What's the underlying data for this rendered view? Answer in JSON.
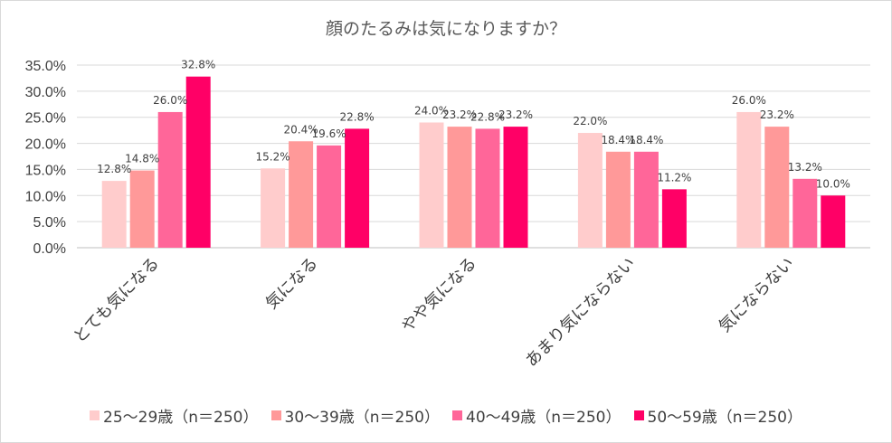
{
  "chart_data": {
    "type": "bar",
    "title": "顔のたるみは気になりますか？",
    "categories": [
      "とても気になる",
      "気になる",
      "やや気になる",
      "あまり気にならない",
      "気にならない"
    ],
    "series": [
      {
        "name": "25～29歳（n＝250）",
        "color": "#ffcccc",
        "values": [
          12.8,
          15.2,
          24.0,
          22.0,
          26.0
        ],
        "labels": [
          "12.8%",
          "15.2%",
          "24.0%",
          "22.0%",
          "26.0%"
        ]
      },
      {
        "name": "30～39歳（n＝250）",
        "color": "#ff9999",
        "values": [
          14.8,
          20.4,
          23.2,
          18.4,
          23.2
        ],
        "labels": [
          "14.8%",
          "20.4%",
          "23.2%",
          "18.4%",
          "23.2%"
        ]
      },
      {
        "name": "40～49歳（n＝250）",
        "color": "#ff6699",
        "values": [
          26.0,
          19.6,
          22.8,
          18.4,
          13.2
        ],
        "labels": [
          "26.0%",
          "19.6%",
          "22.8%",
          "18.4%",
          "13.2%"
        ]
      },
      {
        "name": "50～59歳（n＝250）",
        "color": "#ff0066",
        "values": [
          32.8,
          22.8,
          23.2,
          11.2,
          10.0
        ],
        "labels": [
          "32.8%",
          "22.8%",
          "23.2%",
          "11.2%",
          "10.0%"
        ]
      }
    ],
    "yticks": [
      0,
      5,
      10,
      15,
      20,
      25,
      30,
      35
    ],
    "ytick_labels": [
      "0.0%",
      "5.0%",
      "10.0%",
      "15.0%",
      "20.0%",
      "25.0%",
      "30.0%",
      "35.0%"
    ],
    "ylim": [
      0,
      35
    ],
    "xlabel": "",
    "ylabel": "",
    "grid": true,
    "legend_position": "bottom"
  }
}
